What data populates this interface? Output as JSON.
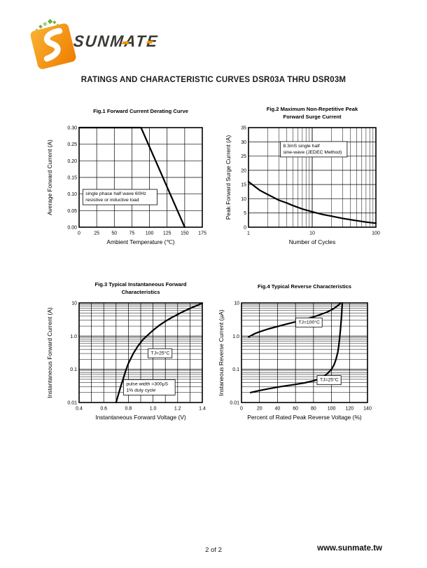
{
  "page": {
    "brand": "SUNMATE",
    "title": "RATINGS AND CHARACTERISTIC CURVES DSR03A THRU DSR03M",
    "footer": {
      "page_number": "2 of 2",
      "website": "www.sunmate.tw"
    }
  },
  "colors": {
    "logo_orange_light": "#F9B233",
    "logo_orange_dark": "#EE7D00",
    "logo_green_dark": "#6FAE3E",
    "logo_green_light": "#A5CE7D",
    "curve": "#000000",
    "text": "#1a1a1a"
  },
  "chart_data": [
    {
      "type": "line",
      "title_lines": [
        "Fig.1 Forward Current Derating Curve"
      ],
      "xlabel": "Ambient Temperature (℃)",
      "ylabel": "Average Forward Current (A)",
      "x": {
        "scale": "linear",
        "min": 0,
        "max": 175,
        "grid_step": 25,
        "ticks": [
          0,
          25,
          50,
          75,
          100,
          125,
          150,
          175
        ],
        "tick_labels": [
          "0",
          "25",
          "50",
          "75",
          "100",
          "125",
          "150",
          "175"
        ]
      },
      "y": {
        "scale": "linear",
        "min": 0,
        "max": 0.3,
        "grid_step": 0.05,
        "ticks": [
          0,
          0.05,
          0.1,
          0.15,
          0.2,
          0.25,
          0.3
        ],
        "tick_labels": [
          "0.00",
          "0.05",
          "0.10",
          "0.15",
          "0.20",
          "0.25",
          "0.30"
        ]
      },
      "series": [
        {
          "name": "derating-curve",
          "points": [
            [
              0,
              0.3
            ],
            [
              88,
              0.3
            ],
            [
              150,
              0.0
            ]
          ]
        }
      ],
      "annotations": [
        {
          "lines": [
            "single phase half wave 60Hz",
            "resistive or inductive load"
          ],
          "fx": 0.03,
          "fy": 0.62,
          "boxed": true
        }
      ]
    },
    {
      "type": "line",
      "title_lines": [
        "Fig.2 Maximum Non-Repetitive Peak",
        "Forward Surge Current"
      ],
      "xlabel": "Number of Cycles",
      "ylabel": "Peak Forward Surge Current (A)",
      "x": {
        "scale": "log",
        "min": 1,
        "max": 100,
        "ticks": [
          1,
          10,
          100
        ],
        "tick_labels": [
          "1",
          "10",
          "100"
        ]
      },
      "y": {
        "scale": "linear",
        "min": 0,
        "max": 35,
        "grid_step": 5,
        "ticks": [
          0,
          5,
          10,
          15,
          20,
          25,
          30,
          35
        ],
        "tick_labels": [
          "0",
          "5",
          "10",
          "15",
          "20",
          "25",
          "30",
          "35"
        ]
      },
      "series": [
        {
          "name": "surge-current",
          "points": [
            [
              1,
              16
            ],
            [
              1.5,
              13
            ],
            [
              2,
              11.5
            ],
            [
              3,
              9.5
            ],
            [
              4,
              8.5
            ],
            [
              5,
              7.6
            ],
            [
              7,
              6.4
            ],
            [
              10,
              5.4
            ],
            [
              15,
              4.4
            ],
            [
              20,
              3.9
            ],
            [
              30,
              3.1
            ],
            [
              50,
              2.3
            ],
            [
              70,
              1.8
            ],
            [
              100,
              1.4
            ]
          ]
        }
      ],
      "annotations": [
        {
          "lines": [
            "8.3mS single half",
            "sine-wave (JEDEC Method)"
          ],
          "fx": 0.25,
          "fy": 0.14,
          "boxed": true
        }
      ]
    },
    {
      "type": "line",
      "title_lines": [
        "Fig.3 Typical Instantaneous Forward",
        "Characteristics"
      ],
      "xlabel": "Instantaneous Forward Voltage (V)",
      "ylabel": "Instantaneous Forward Current (A)",
      "x": {
        "scale": "linear",
        "min": 0.4,
        "max": 1.4,
        "grid_step": 0.1,
        "ticks": [
          0.4,
          0.6,
          0.8,
          1.0,
          1.2,
          1.4
        ],
        "tick_labels": [
          "0.4",
          "0.6",
          "0.8",
          "1.0",
          "1.2",
          "1.4"
        ]
      },
      "y": {
        "scale": "log",
        "min": 0.01,
        "max": 10,
        "ticks": [
          0.01,
          0.1,
          1.0,
          10
        ],
        "tick_labels": [
          "0.01",
          "0.1",
          "1.0",
          "10"
        ]
      },
      "series": [
        {
          "name": "forward-characteristic",
          "points": [
            [
              0.7,
              0.01
            ],
            [
              0.72,
              0.018
            ],
            [
              0.74,
              0.032
            ],
            [
              0.76,
              0.055
            ],
            [
              0.78,
              0.095
            ],
            [
              0.8,
              0.15
            ],
            [
              0.84,
              0.3
            ],
            [
              0.88,
              0.52
            ],
            [
              0.92,
              0.8
            ],
            [
              0.96,
              1.1
            ],
            [
              1.0,
              1.5
            ],
            [
              1.05,
              2.1
            ],
            [
              1.1,
              2.8
            ],
            [
              1.15,
              3.6
            ],
            [
              1.2,
              4.5
            ],
            [
              1.25,
              5.6
            ],
            [
              1.3,
              6.8
            ],
            [
              1.35,
              8.2
            ],
            [
              1.4,
              9.8
            ]
          ]
        }
      ],
      "annotations": [
        {
          "lines": [
            "TJ=25°C"
          ],
          "fx": 0.56,
          "fy": 0.46,
          "boxed": true
        },
        {
          "lines": [
            "pulse width =300µS",
            "1% duty cycle"
          ],
          "fx": 0.36,
          "fy": 0.77,
          "boxed": true
        }
      ]
    },
    {
      "type": "line",
      "title_lines": [
        "Fig.4 Typical Reverse Characteristics"
      ],
      "xlabel": "Percent of Rated Peak Reverse Voltage (%)",
      "ylabel": "Instaneous Reverse Current (µA)",
      "x": {
        "scale": "linear",
        "min": 0,
        "max": 140,
        "grid_step": 20,
        "ticks": [
          0,
          20,
          40,
          60,
          80,
          100,
          120,
          140
        ],
        "tick_labels": [
          "0",
          "20",
          "40",
          "60",
          "80",
          "100",
          "120",
          "140"
        ]
      },
      "y": {
        "scale": "log",
        "min": 0.01,
        "max": 10,
        "ticks": [
          0.01,
          0.1,
          1.0,
          10
        ],
        "tick_labels": [
          "0.01",
          "0.1",
          "1.0",
          "10"
        ]
      },
      "series": [
        {
          "name": "reverse-100C",
          "points": [
            [
              8,
              0.95
            ],
            [
              15,
              1.2
            ],
            [
              20,
              1.35
            ],
            [
              30,
              1.65
            ],
            [
              40,
              1.95
            ],
            [
              50,
              2.3
            ],
            [
              60,
              2.7
            ],
            [
              70,
              3.2
            ],
            [
              80,
              3.8
            ],
            [
              90,
              4.7
            ],
            [
              95,
              5.3
            ],
            [
              100,
              6.2
            ],
            [
              104,
              7.2
            ],
            [
              107,
              8.3
            ],
            [
              109,
              9.2
            ],
            [
              110,
              10
            ]
          ]
        },
        {
          "name": "reverse-25C",
          "points": [
            [
              10,
              0.02
            ],
            [
              20,
              0.023
            ],
            [
              30,
              0.026
            ],
            [
              40,
              0.029
            ],
            [
              50,
              0.032
            ],
            [
              60,
              0.035
            ],
            [
              70,
              0.039
            ],
            [
              80,
              0.045
            ],
            [
              85,
              0.05
            ],
            [
              90,
              0.058
            ],
            [
              95,
              0.072
            ],
            [
              100,
              0.1
            ],
            [
              103,
              0.14
            ],
            [
              105,
              0.2
            ],
            [
              107,
              0.33
            ],
            [
              108,
              0.5
            ],
            [
              109,
              0.85
            ],
            [
              110,
              1.6
            ],
            [
              111,
              3.5
            ],
            [
              111.5,
              6
            ],
            [
              112,
              10
            ]
          ]
        }
      ],
      "annotations": [
        {
          "lines": [
            "TJ=100°C"
          ],
          "fx": 0.43,
          "fy": 0.15,
          "boxed": true
        },
        {
          "lines": [
            "TJ=25°C"
          ],
          "fx": 0.6,
          "fy": 0.73,
          "boxed": true
        }
      ]
    }
  ]
}
